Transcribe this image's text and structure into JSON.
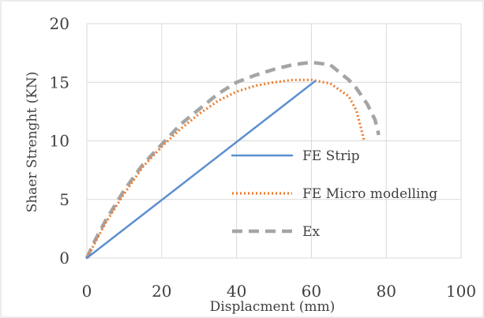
{
  "chart_data": {
    "type": "line",
    "xlabel": "Displacment (mm)",
    "ylabel": "Shaer Strenght  (KN)",
    "xlim": [
      0,
      100
    ],
    "ylim": [
      0,
      20
    ],
    "x_ticks": [
      "0",
      "20",
      "40",
      "60",
      "80",
      "100"
    ],
    "y_ticks": [
      "0",
      "5",
      "10",
      "15",
      "20"
    ],
    "grid": true,
    "legend": "center-right",
    "series": [
      {
        "name": "FE Strip",
        "color": "#5b8fd0",
        "style": "solid",
        "x": [
          0,
          61
        ],
        "y": [
          0,
          15.1
        ]
      },
      {
        "name": "FE  Micro modelling",
        "color": "#ed7d31",
        "style": "dotted",
        "x": [
          0,
          5,
          10,
          15,
          20,
          25,
          30,
          35,
          40,
          45,
          50,
          55,
          60,
          65,
          70,
          72,
          73,
          74
        ],
        "y": [
          0,
          3.0,
          5.5,
          7.8,
          9.5,
          11.0,
          12.3,
          13.4,
          14.2,
          14.7,
          15.0,
          15.2,
          15.2,
          14.9,
          13.8,
          12.6,
          11.4,
          10.1
        ]
      },
      {
        "name": "Ex",
        "color": "#a5a5a5",
        "style": "dashed",
        "x": [
          0,
          2,
          5,
          10,
          15,
          20,
          25,
          30,
          35,
          40,
          45,
          50,
          55,
          60,
          65,
          70,
          72,
          75,
          77,
          78
        ],
        "y": [
          0,
          1.4,
          3.2,
          5.8,
          8.0,
          9.7,
          11.4,
          12.7,
          14.0,
          15.0,
          15.6,
          16.1,
          16.5,
          16.7,
          16.5,
          15.2,
          14.5,
          13.1,
          11.8,
          10.5
        ]
      }
    ]
  }
}
